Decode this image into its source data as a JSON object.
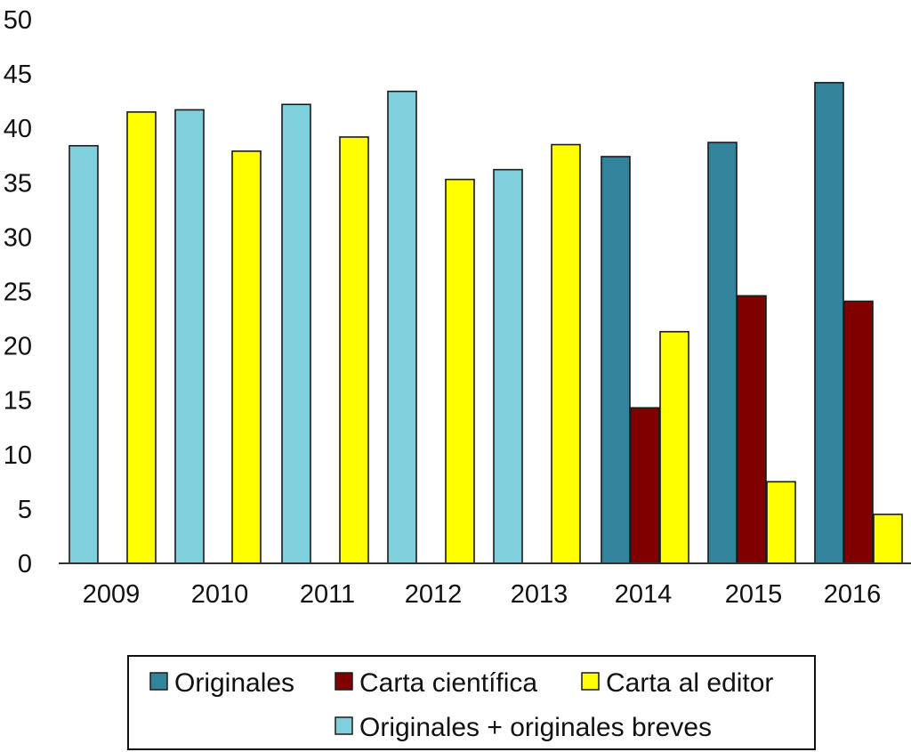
{
  "chart_data": {
    "type": "bar",
    "title": "",
    "xlabel": "",
    "ylabel": "",
    "ylim": [
      0,
      50
    ],
    "yticks": [
      "0",
      "5",
      "10",
      "15",
      "20",
      "25",
      "30",
      "35",
      "40",
      "45",
      "50"
    ],
    "grid": false,
    "legend_position": "bottom",
    "categories": [
      "2009",
      "2010",
      "2011",
      "2012",
      "2013",
      "2014",
      "2015",
      "2016"
    ],
    "series": [
      {
        "name": "Originales",
        "color": "#31849b",
        "values": [
          null,
          null,
          null,
          null,
          null,
          37.4,
          38.7,
          44.2
        ]
      },
      {
        "name": "Carta científica",
        "color": "#800000",
        "values": [
          null,
          null,
          null,
          null,
          null,
          14.3,
          24.6,
          24.1
        ]
      },
      {
        "name": "Carta al editor",
        "color": "#ffff00",
        "values": [
          41.5,
          37.9,
          39.2,
          35.3,
          38.5,
          21.3,
          7.5,
          4.5
        ]
      },
      {
        "name": "Originales + originales breves",
        "color": "#7fd0dc",
        "values": [
          38.4,
          41.7,
          42.2,
          43.4,
          36.2,
          null,
          null,
          null
        ]
      }
    ]
  }
}
